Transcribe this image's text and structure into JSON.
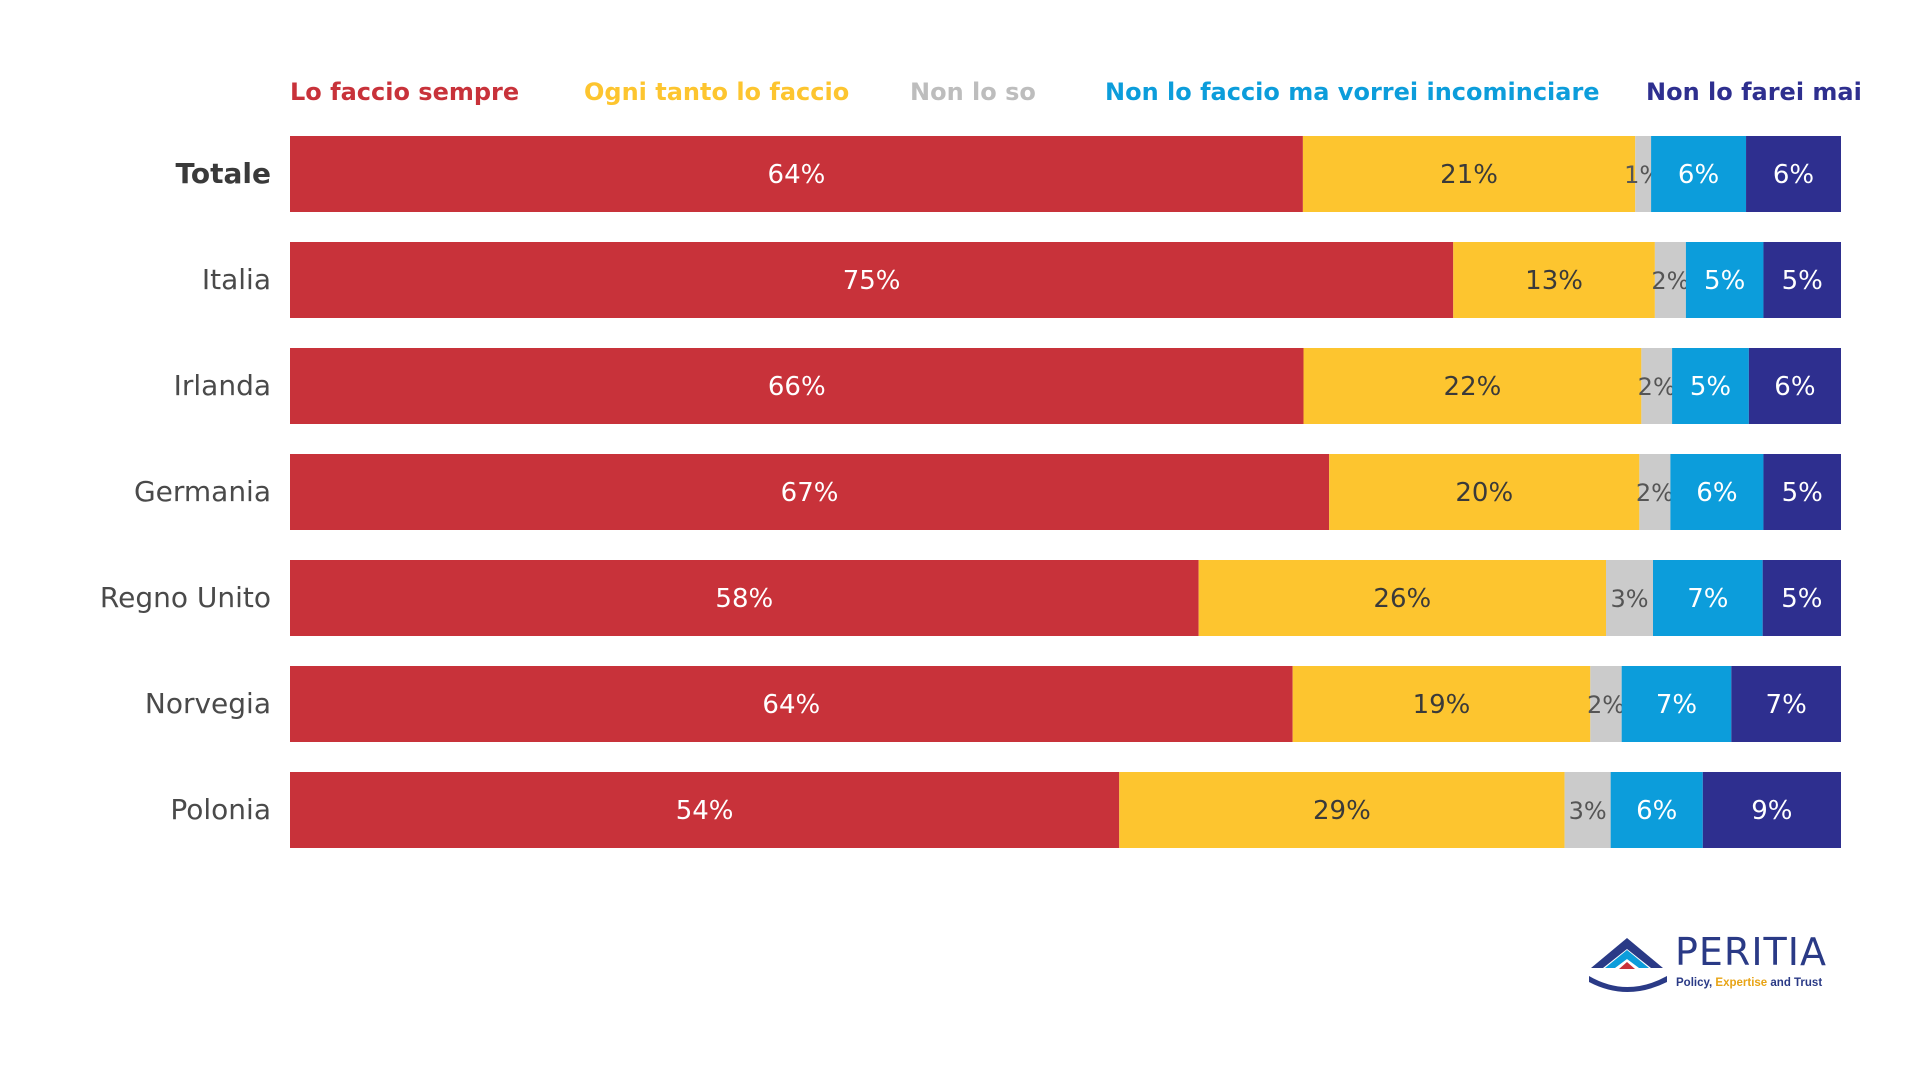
{
  "colors": {
    "lo_faccio_sempre": "#c8323a",
    "ogni_tanto": "#fdc52f",
    "non_lo_so": "#cbcbcb",
    "vorrei_incominciare": "#0c9ddb",
    "non_lo_farei_mai": "#2e2f8f"
  },
  "legend_colors": [
    "#c8323a",
    "#fdc52f",
    "#bdbdbd",
    "#0c9ddb",
    "#2e2f8f"
  ],
  "chart_data": {
    "type": "bar",
    "orientation": "horizontal",
    "stacked": true,
    "categories": [
      "Totale",
      "Italia",
      "Irlanda",
      "Germania",
      "Regno Unito",
      "Norvegia",
      "Polonia"
    ],
    "series": [
      {
        "name": "Lo faccio sempre",
        "values": [
          64,
          75,
          66,
          67,
          58,
          64,
          54
        ],
        "labels": [
          "64%",
          "75%",
          "66%",
          "67%",
          "58%",
          "64%",
          "54%"
        ]
      },
      {
        "name": "Ogni tanto lo faccio",
        "values": [
          21,
          13,
          22,
          20,
          26,
          19,
          29
        ],
        "labels": [
          "21%",
          "13%",
          "22%",
          "20%",
          "26%",
          "19%",
          "29%"
        ]
      },
      {
        "name": "Non lo so",
        "values": [
          1,
          2,
          2,
          2,
          3,
          2,
          3
        ],
        "labels": [
          "1%",
          "2%",
          "2%",
          "2%",
          "3%",
          "2%",
          "3%"
        ]
      },
      {
        "name": "Non lo faccio ma vorrei incominciare",
        "values": [
          6,
          5,
          5,
          6,
          7,
          7,
          6
        ],
        "labels": [
          "6%",
          "5%",
          "5%",
          "6%",
          "7%",
          "7%",
          "6%"
        ]
      },
      {
        "name": "Non lo farei mai",
        "values": [
          6,
          5,
          6,
          5,
          5,
          7,
          9
        ],
        "labels": [
          "6%",
          "5%",
          "6%",
          "5%",
          "5%",
          "7%",
          "9%"
        ]
      }
    ],
    "unit": "%",
    "legend_position": "top",
    "grid": false
  },
  "logo": {
    "name": "PERITIA",
    "tagline_part1": "Policy, ",
    "tagline_part2": "Expertise",
    "tagline_part3": " and Trust"
  }
}
